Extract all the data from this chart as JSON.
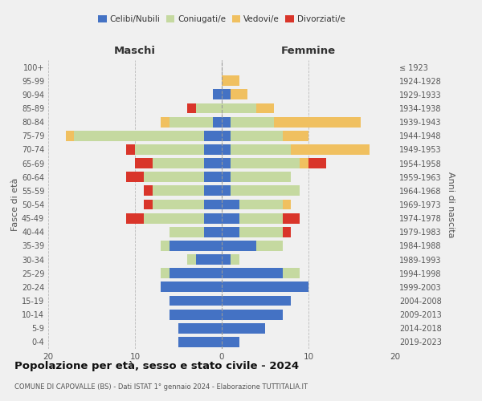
{
  "age_groups": [
    "0-4",
    "5-9",
    "10-14",
    "15-19",
    "20-24",
    "25-29",
    "30-34",
    "35-39",
    "40-44",
    "45-49",
    "50-54",
    "55-59",
    "60-64",
    "65-69",
    "70-74",
    "75-79",
    "80-84",
    "85-89",
    "90-94",
    "95-99",
    "100+"
  ],
  "birth_years": [
    "2019-2023",
    "2014-2018",
    "2009-2013",
    "2004-2008",
    "1999-2003",
    "1994-1998",
    "1989-1993",
    "1984-1988",
    "1979-1983",
    "1974-1978",
    "1969-1973",
    "1964-1968",
    "1959-1963",
    "1954-1958",
    "1949-1953",
    "1944-1948",
    "1939-1943",
    "1934-1938",
    "1929-1933",
    "1924-1928",
    "≤ 1923"
  ],
  "maschi": {
    "celibi": [
      5,
      5,
      6,
      6,
      7,
      6,
      3,
      6,
      2,
      2,
      2,
      2,
      2,
      2,
      2,
      2,
      1,
      0,
      1,
      0,
      0
    ],
    "coniugati": [
      0,
      0,
      0,
      0,
      0,
      1,
      1,
      1,
      4,
      7,
      6,
      6,
      7,
      6,
      8,
      15,
      5,
      3,
      0,
      0,
      0
    ],
    "vedovi": [
      0,
      0,
      0,
      0,
      0,
      0,
      0,
      0,
      0,
      0,
      0,
      0,
      0,
      0,
      0,
      1,
      1,
      0,
      0,
      0,
      0
    ],
    "divorziati": [
      0,
      0,
      0,
      0,
      0,
      0,
      0,
      0,
      0,
      2,
      1,
      1,
      2,
      2,
      1,
      0,
      0,
      1,
      0,
      0,
      0
    ]
  },
  "femmine": {
    "nubili": [
      2,
      5,
      7,
      8,
      10,
      7,
      1,
      4,
      2,
      2,
      2,
      1,
      1,
      1,
      1,
      1,
      1,
      0,
      1,
      0,
      0
    ],
    "coniugate": [
      0,
      0,
      0,
      0,
      0,
      2,
      1,
      3,
      5,
      5,
      5,
      8,
      7,
      8,
      7,
      6,
      5,
      4,
      0,
      0,
      0
    ],
    "vedove": [
      0,
      0,
      0,
      0,
      0,
      0,
      0,
      0,
      0,
      0,
      1,
      0,
      0,
      1,
      9,
      3,
      10,
      2,
      2,
      2,
      0
    ],
    "divorziate": [
      0,
      0,
      0,
      0,
      0,
      0,
      0,
      0,
      1,
      2,
      0,
      0,
      0,
      2,
      0,
      0,
      0,
      0,
      0,
      0,
      0
    ]
  },
  "colors": {
    "celibi_nubili": "#4472c4",
    "coniugati_e": "#c5d9a0",
    "vedovi_e": "#f0c060",
    "divorziati_e": "#d9352a"
  },
  "xlim": 20,
  "title": "Popolazione per età, sesso e stato civile - 2024",
  "subtitle": "COMUNE DI CAPOVALLE (BS) - Dati ISTAT 1° gennaio 2024 - Elaborazione TUTTITALIA.IT",
  "ylabel_left": "Fasce di età",
  "ylabel_right": "Anni di nascita",
  "xlabel_maschi": "Maschi",
  "xlabel_femmine": "Femmine",
  "legend_labels": [
    "Celibi/Nubili",
    "Coniugati/e",
    "Vedovi/e",
    "Divorziati/e"
  ],
  "background_color": "#f0f0f0"
}
